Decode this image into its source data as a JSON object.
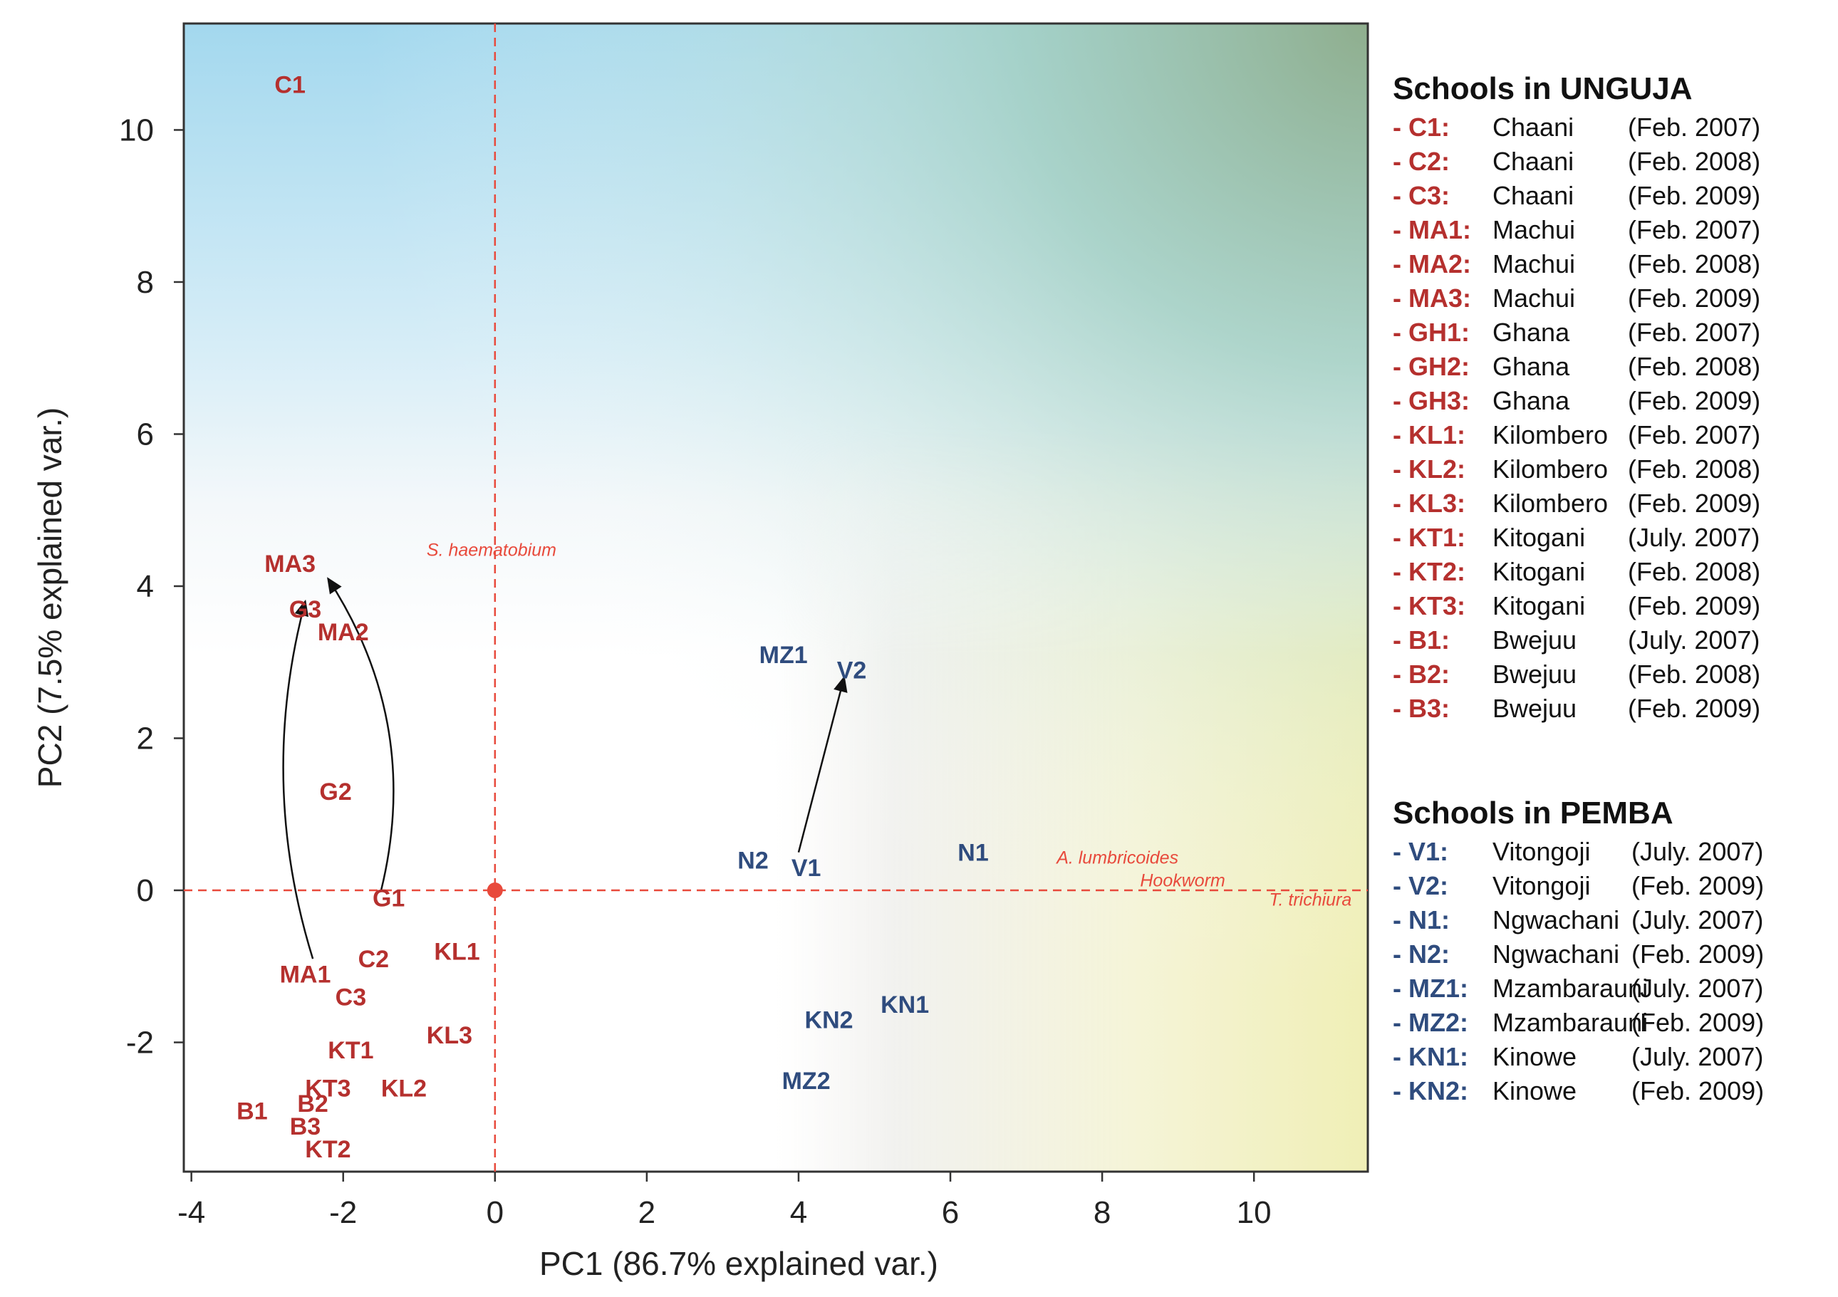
{
  "colors": {
    "unguja": "#b5302e",
    "pemba": "#2f4c7e",
    "reference": "#e84a3c",
    "arrow": "#111111"
  },
  "chart_data": {
    "type": "scatter",
    "subtype": "PCA biplot",
    "xlabel": "PC1 (86.7% explained var.)",
    "ylabel": "PC2 (7.5% explained var.)",
    "xlim": [
      -4.1,
      11.5
    ],
    "ylim": [
      -3.7,
      11.4
    ],
    "x_ticks": [
      -4,
      -2,
      0,
      2,
      4,
      6,
      8,
      10
    ],
    "x_tick_labels": [
      "-4",
      "-2",
      "0",
      "2",
      "4",
      "6",
      "8",
      "10"
    ],
    "y_ticks": [
      -2,
      0,
      2,
      4,
      6,
      8,
      10
    ],
    "y_tick_labels": [
      "-2",
      "0",
      "2",
      "4",
      "6",
      "8",
      "10"
    ],
    "grid": false,
    "reference_lines": {
      "x": 0,
      "y": 0,
      "style": "dashed"
    },
    "origin_marker": [
      0,
      0
    ],
    "series": [
      {
        "name": "Schools in UNGUJA",
        "points": [
          {
            "label": "C1",
            "x": -2.7,
            "y": 10.6
          },
          {
            "label": "MA3",
            "x": -2.7,
            "y": 4.3
          },
          {
            "label": "G3",
            "x": -2.5,
            "y": 3.7
          },
          {
            "label": "MA2",
            "x": -2.0,
            "y": 3.4
          },
          {
            "label": "G2",
            "x": -2.1,
            "y": 1.3
          },
          {
            "label": "G1",
            "x": -1.4,
            "y": -0.1
          },
          {
            "label": "MA1",
            "x": -2.5,
            "y": -1.1
          },
          {
            "label": "C2",
            "x": -1.6,
            "y": -0.9
          },
          {
            "label": "C3",
            "x": -1.9,
            "y": -1.4
          },
          {
            "label": "KL1",
            "x": -0.5,
            "y": -0.8
          },
          {
            "label": "KL3",
            "x": -0.6,
            "y": -1.9
          },
          {
            "label": "KT1",
            "x": -1.9,
            "y": -2.1
          },
          {
            "label": "KL2",
            "x": -1.2,
            "y": -2.6
          },
          {
            "label": "KT3",
            "x": -2.2,
            "y": -2.6
          },
          {
            "label": "B2",
            "x": -2.4,
            "y": -2.8
          },
          {
            "label": "B1",
            "x": -3.2,
            "y": -2.9
          },
          {
            "label": "B3",
            "x": -2.5,
            "y": -3.1
          },
          {
            "label": "KT2",
            "x": -2.2,
            "y": -3.4
          }
        ]
      },
      {
        "name": "Schools in PEMBA",
        "points": [
          {
            "label": "MZ1",
            "x": 3.8,
            "y": 3.1
          },
          {
            "label": "V2",
            "x": 4.7,
            "y": 2.9
          },
          {
            "label": "N2",
            "x": 3.4,
            "y": 0.4
          },
          {
            "label": "V1",
            "x": 4.1,
            "y": 0.3
          },
          {
            "label": "N1",
            "x": 6.3,
            "y": 0.5
          },
          {
            "label": "KN1",
            "x": 5.4,
            "y": -1.5
          },
          {
            "label": "KN2",
            "x": 4.4,
            "y": -1.7
          },
          {
            "label": "MZ2",
            "x": 4.1,
            "y": -2.5
          }
        ]
      }
    ],
    "variable_labels": [
      {
        "label": "S. haematobium",
        "x": -0.9,
        "y": 4.4
      },
      {
        "label": "A. lumbricoides",
        "x": 7.4,
        "y": 0.35
      },
      {
        "label": "Hookworm",
        "x": 8.5,
        "y": 0.05
      },
      {
        "label": "T. trichiura",
        "x": 10.2,
        "y": -0.2
      }
    ],
    "arrows": [
      {
        "from": [
          -1.5,
          0.0
        ],
        "to": [
          -2.2,
          4.1
        ],
        "description": "G1 to G3"
      },
      {
        "from": [
          -2.4,
          -0.9
        ],
        "to": [
          -2.5,
          3.8
        ],
        "description": "MA1 to MA3"
      },
      {
        "from": [
          4.0,
          0.5
        ],
        "to": [
          4.6,
          2.8
        ],
        "description": "V1 to V2"
      }
    ]
  },
  "legend": {
    "unguja": {
      "title": "Schools in UNGUJA",
      "entries": [
        {
          "code": "- C1:",
          "name": "Chaani",
          "date": "(Feb. 2007)"
        },
        {
          "code": "- C2:",
          "name": "Chaani",
          "date": "(Feb. 2008)"
        },
        {
          "code": "- C3:",
          "name": "Chaani",
          "date": "(Feb. 2009)"
        },
        {
          "code": "- MA1:",
          "name": "Machui",
          "date": "(Feb. 2007)"
        },
        {
          "code": "- MA2:",
          "name": "Machui",
          "date": "(Feb. 2008)"
        },
        {
          "code": "- MA3:",
          "name": "Machui",
          "date": "(Feb. 2009)"
        },
        {
          "code": "- GH1:",
          "name": "Ghana",
          "date": "(Feb. 2007)"
        },
        {
          "code": "- GH2:",
          "name": "Ghana",
          "date": "(Feb. 2008)"
        },
        {
          "code": "- GH3:",
          "name": "Ghana",
          "date": "(Feb. 2009)"
        },
        {
          "code": "- KL1:",
          "name": "Kilombero",
          "date": "(Feb. 2007)"
        },
        {
          "code": "- KL2:",
          "name": "Kilombero",
          "date": "(Feb. 2008)"
        },
        {
          "code": "- KL3:",
          "name": "Kilombero",
          "date": "(Feb. 2009)"
        },
        {
          "code": "- KT1:",
          "name": "Kitogani",
          "date": "(July. 2007)"
        },
        {
          "code": "- KT2:",
          "name": "Kitogani",
          "date": "(Feb. 2008)"
        },
        {
          "code": "- KT3:",
          "name": "Kitogani",
          "date": "(Feb. 2009)"
        },
        {
          "code": "- B1:",
          "name": "Bwejuu",
          "date": "(July. 2007)"
        },
        {
          "code": "- B2:",
          "name": "Bwejuu",
          "date": "(Feb. 2008)"
        },
        {
          "code": "- B3:",
          "name": "Bwejuu",
          "date": "(Feb. 2009)"
        }
      ]
    },
    "pemba": {
      "title": "Schools in PEMBA",
      "entries": [
        {
          "code": "- V1:",
          "name": "Vitongoji",
          "date": "(July. 2007)"
        },
        {
          "code": "- V2:",
          "name": "Vitongoji",
          "date": "(Feb. 2009)"
        },
        {
          "code": "- N1:",
          "name": "Ngwachani",
          "date": "(July. 2007)"
        },
        {
          "code": "- N2:",
          "name": "Ngwachani",
          "date": "(Feb. 2009)"
        },
        {
          "code": "- MZ1:",
          "name": "Mzambarauni",
          "date": "(July. 2007)"
        },
        {
          "code": "- MZ2:",
          "name": "Mzambarauni",
          "date": "(Feb. 2009)"
        },
        {
          "code": "- KN1:",
          "name": "Kinowe",
          "date": "(July. 2007)"
        },
        {
          "code": "- KN2:",
          "name": "Kinowe",
          "date": "(Feb. 2009)"
        }
      ]
    }
  }
}
